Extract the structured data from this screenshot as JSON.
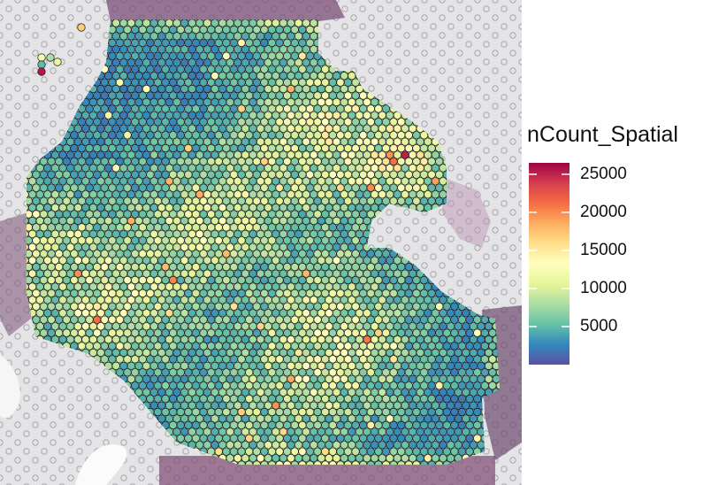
{
  "chart_data": {
    "type": "heatmap",
    "title": "",
    "xlabel": "",
    "ylabel": "",
    "legend": {
      "title": "nCount_Spatial",
      "placement": "right",
      "range": [
        0,
        26500
      ],
      "ticks": [
        {
          "value": 25000,
          "label": "25000"
        },
        {
          "value": 20000,
          "label": "20000"
        },
        {
          "value": 15000,
          "label": "15000"
        },
        {
          "value": 10000,
          "label": "10000"
        },
        {
          "value": 5000,
          "label": "5000"
        }
      ],
      "palette": [
        "#5E4FA2",
        "#3288BD",
        "#66C2A5",
        "#ABDDA4",
        "#E6F598",
        "#FFFFBF",
        "#FEE08B",
        "#FDAE61",
        "#F46D43",
        "#D53E4F",
        "#9E0142"
      ]
    },
    "background": "tissue-histology-image",
    "grid": false
  }
}
